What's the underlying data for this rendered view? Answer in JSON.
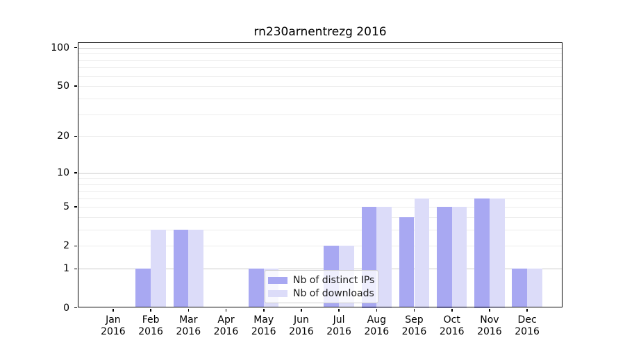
{
  "chart_data": {
    "type": "bar",
    "title": "rn230arnentrezg 2016",
    "categories": [
      "Jan",
      "Feb",
      "Mar",
      "Apr",
      "May",
      "Jun",
      "Jul",
      "Aug",
      "Sep",
      "Oct",
      "Nov",
      "Dec"
    ],
    "year_label": "2016",
    "series": [
      {
        "name": "Nb of distinct IPs",
        "color": "#a8a8f2",
        "values": [
          0,
          1,
          3,
          0,
          1,
          0,
          2,
          5,
          4,
          5,
          6,
          1
        ]
      },
      {
        "name": "Nb of downloads",
        "color": "#dcdcf9",
        "values": [
          0,
          3,
          3,
          0,
          1,
          0,
          2,
          5,
          6,
          5,
          6,
          1
        ]
      }
    ],
    "yscale": "log10(1+v)",
    "ylim": [
      0,
      110
    ],
    "yticks": [
      0,
      1,
      2,
      5,
      10,
      20,
      50,
      100
    ],
    "gridline_values": [
      1,
      2,
      3,
      4,
      5,
      6,
      7,
      8,
      9,
      10,
      20,
      30,
      40,
      50,
      60,
      70,
      80,
      90,
      100
    ],
    "major_gridlines": [
      1,
      10,
      100
    ],
    "grid_color_minor": "#ececec",
    "grid_color_major": "#c9c9c9",
    "legend_position": "inside-lower-center",
    "xlabel": "",
    "ylabel": ""
  }
}
